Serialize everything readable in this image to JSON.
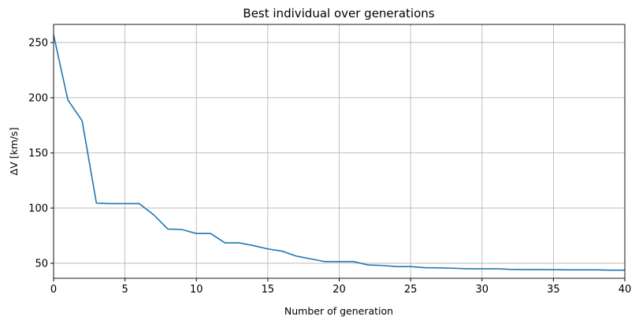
{
  "chart_data": {
    "type": "line",
    "title": "Best individual over generations",
    "x_label": "Number of generation",
    "y_label": "ΔV [km/s]",
    "x": [
      0,
      1,
      2,
      3,
      4,
      5,
      6,
      7,
      8,
      9,
      10,
      11,
      12,
      13,
      14,
      15,
      16,
      17,
      18,
      19,
      20,
      21,
      22,
      23,
      24,
      25,
      26,
      27,
      28,
      29,
      30,
      31,
      32,
      33,
      34,
      35,
      36,
      37,
      38,
      39,
      40
    ],
    "series": [
      {
        "color": "#1f77b4",
        "values": [
          257,
          198,
          179,
          104.5,
          104,
          104,
          104,
          94,
          81,
          80.5,
          77,
          77,
          68.5,
          68.5,
          66,
          63,
          61,
          56.5,
          54,
          51.5,
          51.5,
          51.5,
          48.5,
          48,
          47,
          47,
          46,
          45.8,
          45.5,
          45,
          45,
          45,
          44.5,
          44.3,
          44.3,
          44.2,
          44,
          44,
          44,
          43.8,
          43.8
        ]
      }
    ],
    "xlim": [
      0,
      40
    ],
    "xticks": [
      0,
      5,
      10,
      15,
      20,
      25,
      30,
      35,
      40
    ],
    "ylim": [
      36.4,
      266.4
    ],
    "yticks": [
      50,
      100,
      150,
      200,
      250
    ],
    "grid": true
  }
}
